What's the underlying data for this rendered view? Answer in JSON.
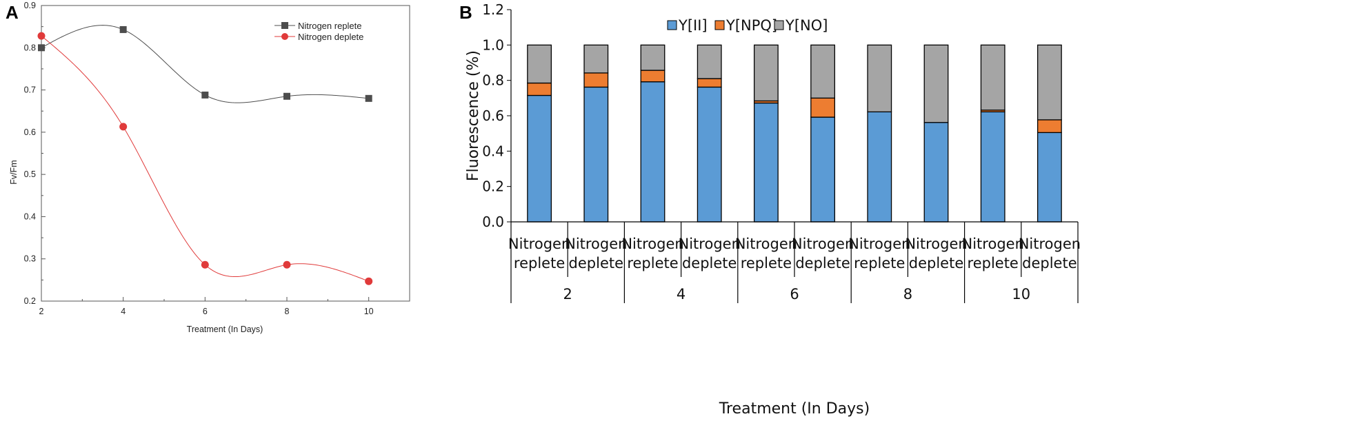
{
  "chart_data": [
    {
      "panel": "A",
      "type": "line",
      "title": "",
      "xlabel": "Treatment (In Days)",
      "ylabel": "Fv/Fm",
      "xlim": [
        2,
        11
      ],
      "ylim": [
        0.2,
        0.9
      ],
      "x_ticks": [
        2,
        4,
        6,
        8,
        10
      ],
      "y_ticks": [
        0.2,
        0.3,
        0.4,
        0.5,
        0.6,
        0.7,
        0.8,
        0.9
      ],
      "legend_position": "top-right",
      "series": [
        {
          "name": "Nitrogen replete",
          "color": "#4d4d4d",
          "marker": "square",
          "x": [
            2,
            4,
            6,
            8,
            10
          ],
          "y": [
            0.8,
            0.843,
            0.688,
            0.685,
            0.68
          ]
        },
        {
          "name": "Nitrogen deplete",
          "color": "#e03a3a",
          "marker": "circle",
          "x": [
            2,
            4,
            6,
            8,
            10
          ],
          "y": [
            0.828,
            0.613,
            0.286,
            0.286,
            0.247
          ]
        }
      ]
    },
    {
      "panel": "B",
      "type": "bar",
      "stacked": true,
      "title": "",
      "xlabel": "Treatment (In Days)",
      "ylabel": "Fluorescence (%)",
      "ylim": [
        0.0,
        1.2
      ],
      "y_ticks": [
        "0.0",
        "0.2",
        "0.4",
        "0.6",
        "0.8",
        "1.0",
        "1.2"
      ],
      "legend_position": "top-center",
      "categories": [
        {
          "line1": "Nitrogen",
          "line2": "replete"
        },
        {
          "line1": "Nitrogen",
          "line2": "deplete"
        },
        {
          "line1": "Nitrogen",
          "line2": "replete"
        },
        {
          "line1": "Nitrogen",
          "line2": "deplete"
        },
        {
          "line1": "Nitrogen",
          "line2": "replete"
        },
        {
          "line1": "Nitrogen",
          "line2": "deplete"
        },
        {
          "line1": "Nitrogen",
          "line2": "replete"
        },
        {
          "line1": "Nitrogen",
          "line2": "deplete"
        },
        {
          "line1": "Nitrogen",
          "line2": "replete"
        },
        {
          "line1": "Nitrogen",
          "line2": "deplete"
        }
      ],
      "groups": [
        "2",
        "4",
        "6",
        "8",
        "10"
      ],
      "series": [
        {
          "name": "Y[II]",
          "color": "#5b9bd5",
          "values": [
            0.715,
            0.762,
            0.792,
            0.762,
            0.672,
            0.592,
            0.622,
            0.562,
            0.622,
            0.505
          ]
        },
        {
          "name": "Y[NPQ]",
          "color": "#ed7d31",
          "values": [
            0.07,
            0.08,
            0.065,
            0.048,
            0.012,
            0.108,
            0.0,
            0.0,
            0.01,
            0.072
          ]
        },
        {
          "name": "Y[NO]",
          "color": "#a5a5a5",
          "values": [
            0.215,
            0.158,
            0.143,
            0.19,
            0.316,
            0.3,
            0.378,
            0.438,
            0.368,
            0.423
          ]
        }
      ]
    }
  ]
}
